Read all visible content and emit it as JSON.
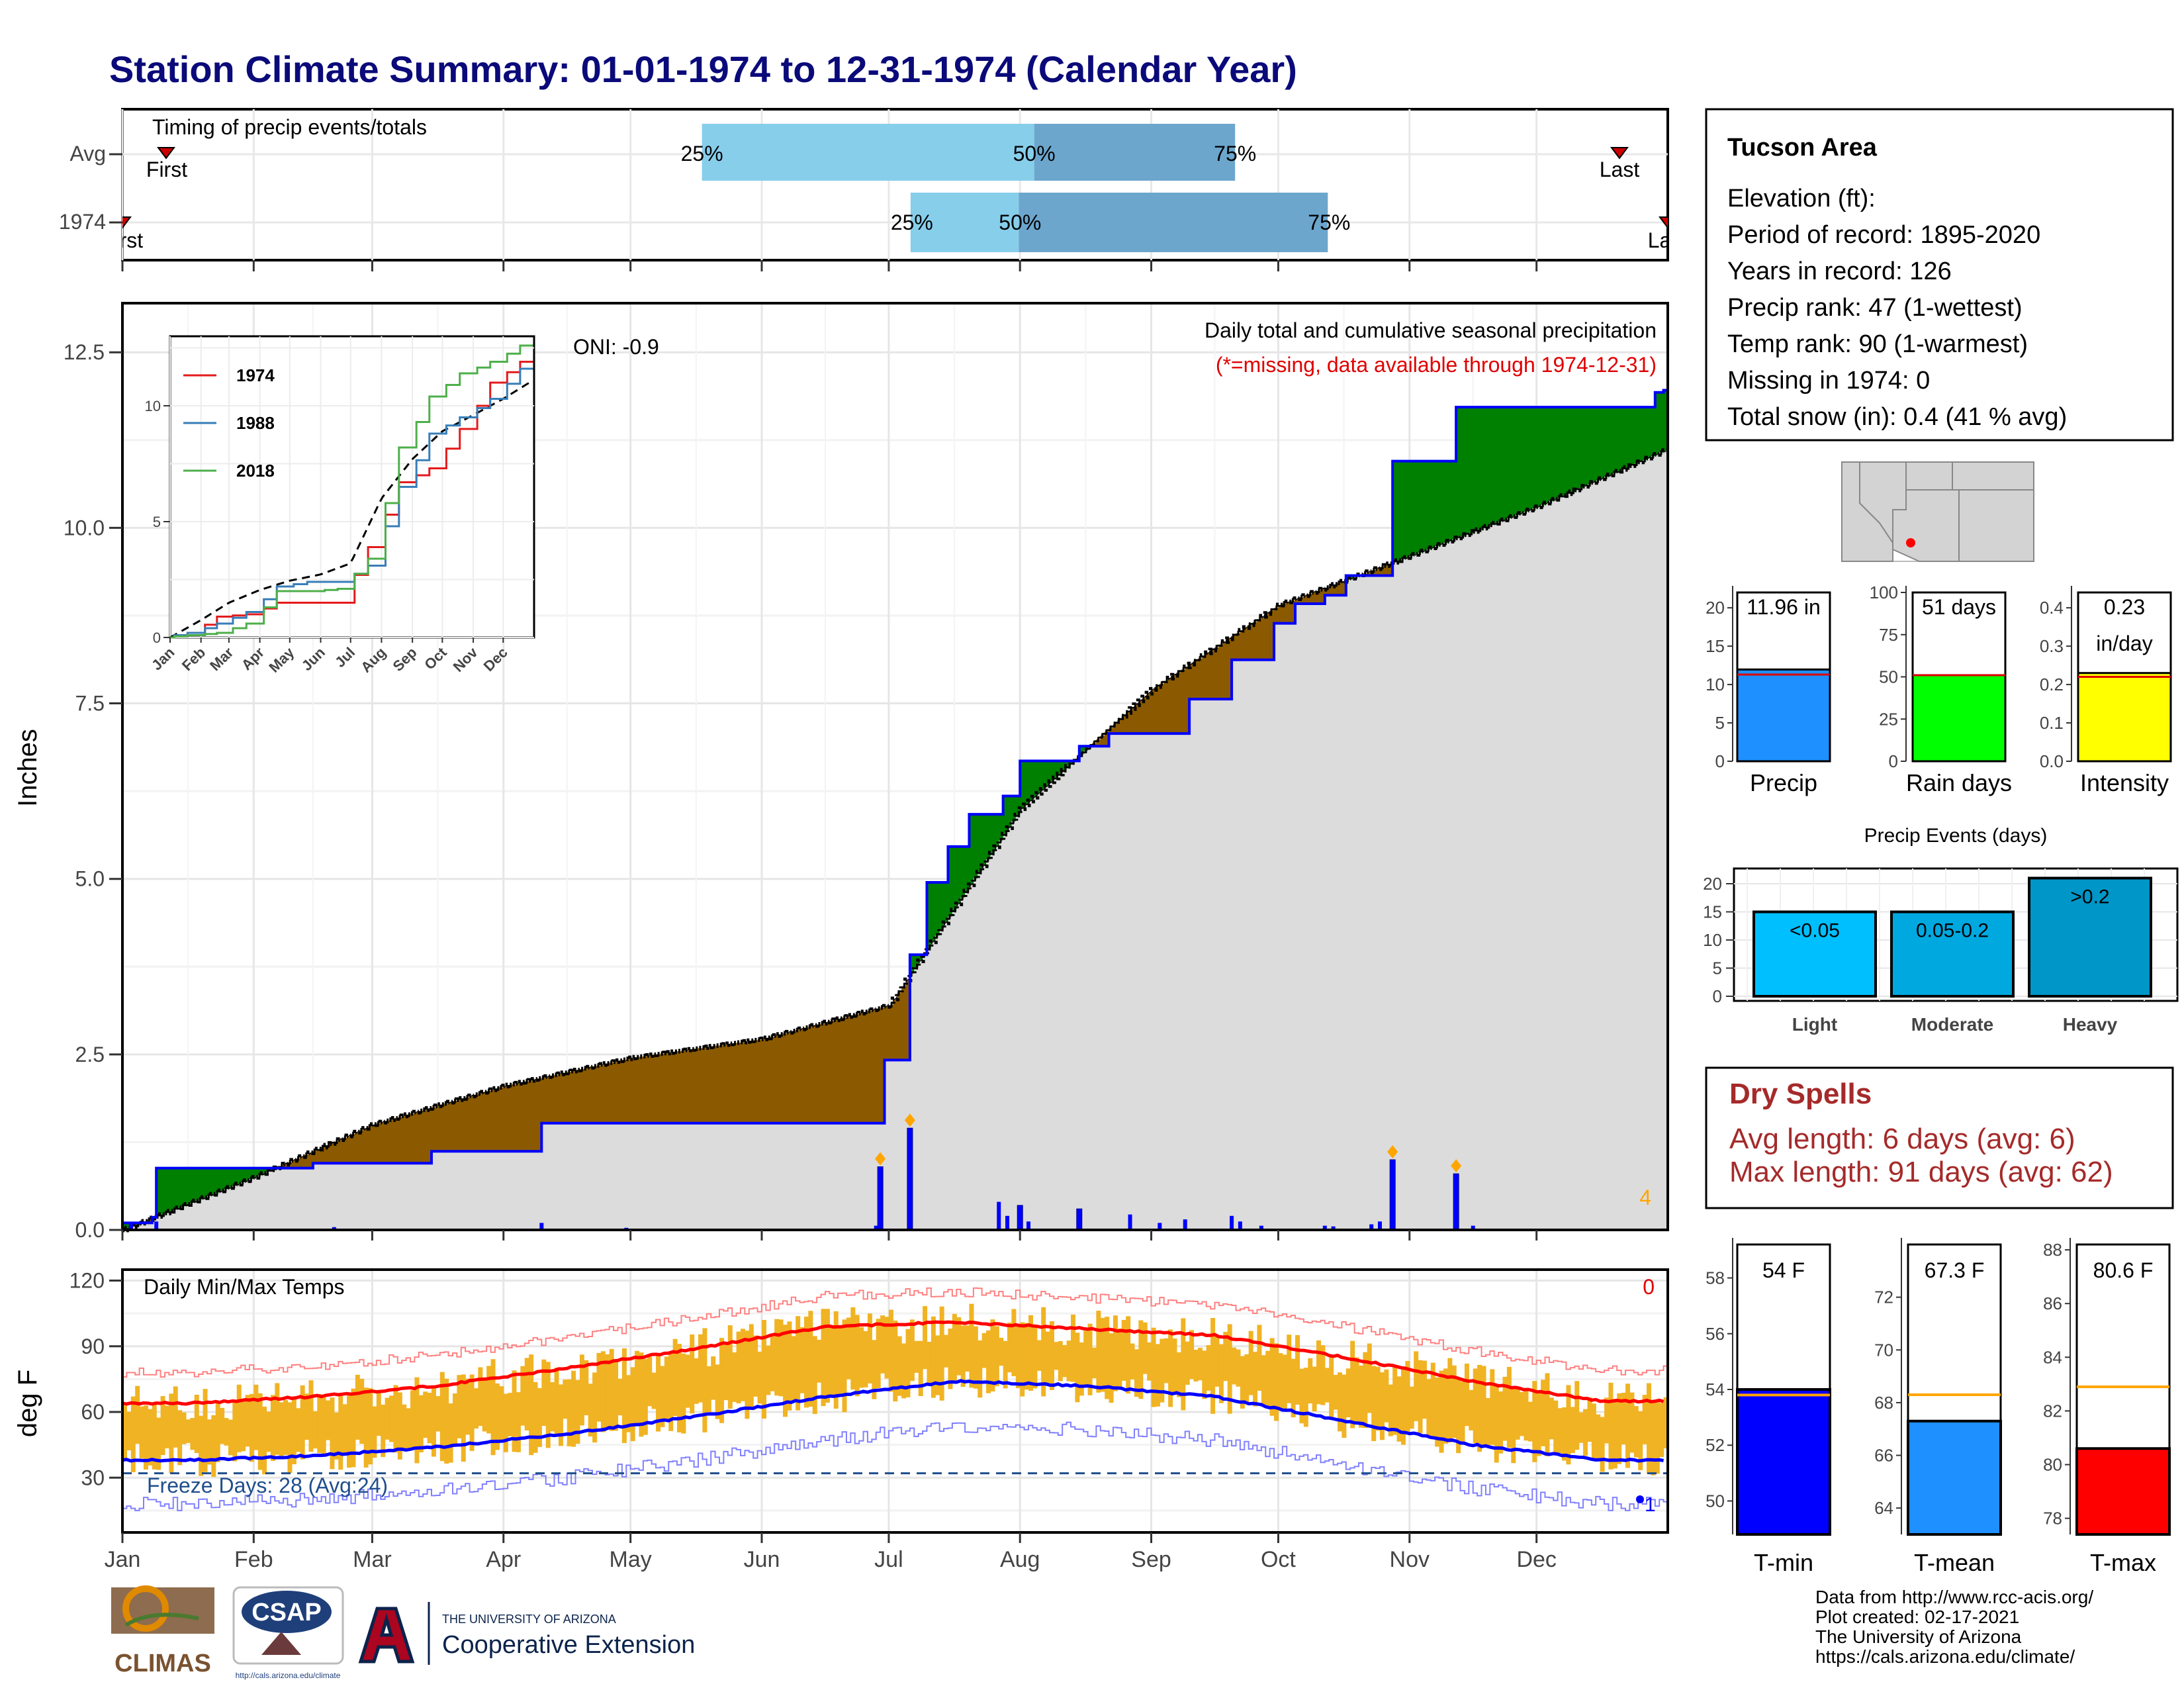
{
  "title": "Station Climate Summary: 01-01-1974 to 12-31-1974 (Calendar Year)",
  "station": {
    "name": "Tucson Area",
    "lines": [
      "Elevation (ft):",
      "Period of record: 1895-2020",
      "Years in record: 126",
      "Precip rank: 47 (1-wettest)",
      "Temp rank: 90 (1-warmest)",
      "Missing in 1974: 0",
      "Total snow (in): 0.4 (41 % avg)"
    ]
  },
  "timing": {
    "title": "Timing of precip events/totals",
    "rows": [
      "Avg",
      "1974"
    ],
    "first_label": "First",
    "last_label": "Last",
    "avg_pct": {
      "p25": 0.375,
      "p50": 0.59,
      "p75": 0.72
    },
    "y1974_pct": {
      "p25": 0.51,
      "p50": 0.58,
      "p75": 0.78
    },
    "labels": {
      "p25": "25%",
      "p50": "50%",
      "p75": "75%"
    }
  },
  "precip_panel": {
    "title": "Daily total and cumulative seasonal precipitation",
    "subtitle": "(*=missing, data available through 1974-12-31)",
    "oni": "ONI: -0.9",
    "ylabel": "Inches",
    "yticks": [
      "0.0",
      "2.5",
      "5.0",
      "7.5",
      "10.0",
      "12.5"
    ],
    "count_label": "4"
  },
  "temp_panel": {
    "title": "Daily Min/Max Temps",
    "ylabel": "deg F",
    "yticks": [
      "30",
      "60",
      "90",
      "120"
    ],
    "freeze": "Freeze Days: 28 (Avg:24)",
    "count_label": "0",
    "min_marker": "1"
  },
  "months": [
    "Jan",
    "Feb",
    "Mar",
    "Apr",
    "May",
    "Jun",
    "Jul",
    "Aug",
    "Sep",
    "Oct",
    "Nov",
    "Dec"
  ],
  "inset": {
    "series": [
      {
        "name": "1974",
        "color": "#e41a1c"
      },
      {
        "name": "1988",
        "color": "#377eb8"
      },
      {
        "name": "2018",
        "color": "#4daf4a"
      }
    ],
    "yticks": [
      "0",
      "5",
      "10"
    ]
  },
  "bars": {
    "precip": {
      "label": "11.96 in",
      "name": "Precip",
      "value": 11.96,
      "avg": 11.3,
      "ymax": 22,
      "yticks": [
        "0",
        "5",
        "10",
        "15",
        "20"
      ],
      "color": "#1e90ff"
    },
    "raindays": {
      "label": "51 days",
      "name": "Rain days",
      "value": 51,
      "avg": 51,
      "ymax": 100,
      "yticks": [
        "0",
        "25",
        "50",
        "75",
        "100"
      ],
      "color": "#00ff00"
    },
    "intensity": {
      "label1": "0.23",
      "label2": "in/day",
      "name": "Intensity",
      "value": 0.23,
      "avg": 0.22,
      "ymax": 0.44,
      "yticks": [
        "0.0",
        "0.1",
        "0.2",
        "0.3",
        "0.4"
      ],
      "color": "#ffff00"
    }
  },
  "events": {
    "title": "Precip Events (days)",
    "yticks": [
      "0",
      "5",
      "10",
      "15",
      "20"
    ],
    "categories": [
      "Light",
      "Moderate",
      "Heavy"
    ],
    "labels": [
      "<0.05",
      "0.05-0.2",
      ">0.2"
    ],
    "values": [
      15,
      15,
      21
    ],
    "colors": [
      "#00bfff",
      "#00a8e0",
      "#0096c7"
    ]
  },
  "dry_spells": {
    "title": "Dry Spells",
    "avg": "Avg length: 6 days (avg: 6)",
    "max": "Max length: 91 days (avg: 62)"
  },
  "temp_bars": {
    "tmin": {
      "label": "54 F",
      "name": "T-min",
      "value": 54,
      "avg": 53.8,
      "ymin": 48.8,
      "ymax": 59.2,
      "yticks": [
        "50",
        "52",
        "54",
        "56",
        "58"
      ],
      "color": "#0000ff"
    },
    "tmean": {
      "label": "67.3 F",
      "name": "T-mean",
      "value": 67.3,
      "avg": 68.3,
      "ymin": 63,
      "ymax": 74,
      "yticks": [
        "64",
        "66",
        "68",
        "70",
        "72"
      ],
      "color": "#1e90ff"
    },
    "tmax": {
      "label": "80.6 F",
      "name": "T-max",
      "value": 80.6,
      "avg": 82.9,
      "ymin": 77.4,
      "ymax": 88.2,
      "yticks": [
        "78",
        "80",
        "82",
        "84",
        "86",
        "88"
      ],
      "color": "#ff0000"
    }
  },
  "footer": {
    "lines": [
      "Data from http://www.rcc-acis.org/",
      "Plot created: 02-17-2021",
      "The University of Arizona",
      "https://cals.arizona.edu/climate/"
    ],
    "climas": "CLIMAS",
    "csap": "CSAP",
    "csap_url": "http://cals.arizona.edu/climate",
    "ua_small": "THE UNIVERSITY OF ARIZONA",
    "ua_big": "Cooperative Extension"
  },
  "chart_data": [
    {
      "type": "area",
      "title": "Daily total and cumulative seasonal precipitation",
      "ylabel": "Inches",
      "ylim": [
        0,
        13.2
      ],
      "series": [
        {
          "name": "1974",
          "x": [
            "01-01",
            "01-08",
            "01-09",
            "02-15",
            "03-15",
            "04-10",
            "06-29",
            "06-30",
            "07-06",
            "07-10",
            "07-15",
            "07-20",
            "07-28",
            "08-01",
            "08-15",
            "08-22",
            "09-10",
            "09-20",
            "09-30",
            "10-05",
            "10-12",
            "10-17",
            "10-28",
            "11-12",
            "12-29",
            "12-31"
          ],
          "values": [
            0.1,
            0.18,
            0.88,
            0.95,
            1.12,
            1.52,
            1.52,
            2.42,
            3.92,
            4.95,
            5.46,
            5.92,
            6.18,
            6.68,
            6.89,
            7.07,
            7.56,
            8.12,
            8.64,
            8.92,
            9.04,
            9.32,
            10.95,
            11.72,
            11.93,
            11.96
          ]
        },
        {
          "name": "Avg",
          "x": [
            "01-01",
            "02-01",
            "03-01",
            "04-01",
            "05-01",
            "06-01",
            "07-01",
            "08-01",
            "09-01",
            "10-01",
            "11-01",
            "12-01",
            "12-31"
          ],
          "values": [
            0,
            0.75,
            1.5,
            2.05,
            2.45,
            2.72,
            3.2,
            6.0,
            7.7,
            8.9,
            9.6,
            10.3,
            11.1
          ]
        }
      ],
      "daily_totals": {
        "x": [
          "06-29",
          "07-06",
          "08-01",
          "08-15",
          "10-28",
          "11-12"
        ],
        "values": [
          0.9,
          1.45,
          0.35,
          0.3,
          1.0,
          0.8
        ]
      }
    },
    {
      "type": "line",
      "title": "Daily Min/Max Temps",
      "ylabel": "deg F",
      "ylim": [
        5,
        125
      ],
      "x": [
        "Jan",
        "Feb",
        "Mar",
        "Apr",
        "May",
        "Jun",
        "Jul",
        "Aug",
        "Sep",
        "Oct",
        "Nov",
        "Dec"
      ],
      "series": [
        {
          "name": "Avg Max",
          "values": [
            64,
            67,
            72,
            80,
            89,
            99,
            101,
            98,
            95,
            85,
            74,
            65
          ]
        },
        {
          "name": "Avg Min",
          "values": [
            38,
            40,
            44,
            50,
            58,
            67,
            74,
            72,
            67,
            56,
            45,
            38
          ]
        }
      ]
    },
    {
      "type": "line",
      "title": "",
      "ylim": [
        0,
        13
      ],
      "x": [
        "Jan",
        "Feb",
        "Mar",
        "Apr",
        "May",
        "Jun",
        "Jul",
        "Aug",
        "Sep",
        "Oct",
        "Nov",
        "Dec"
      ],
      "series": [
        {
          "name": "1974",
          "values": [
            0.2,
            0.9,
            1.0,
            1.5,
            1.5,
            1.5,
            3.9,
            6.7,
            7.3,
            9.0,
            11.0,
            11.9
          ]
        },
        {
          "name": "1988",
          "values": [
            0.2,
            0.6,
            1.1,
            2.2,
            2.4,
            2.4,
            3.1,
            6.5,
            8.8,
            9.5,
            10.3,
            11.6
          ]
        },
        {
          "name": "2018",
          "values": [
            0.1,
            0.2,
            0.6,
            2.0,
            2.0,
            2.1,
            3.4,
            8.2,
            10.4,
            11.4,
            11.9,
            12.6
          ]
        }
      ]
    },
    {
      "type": "bar",
      "title": "Precip Events (days)",
      "categories": [
        "Light",
        "Moderate",
        "Heavy"
      ],
      "values": [
        15,
        15,
        21
      ],
      "ylim": [
        0,
        22
      ]
    }
  ]
}
